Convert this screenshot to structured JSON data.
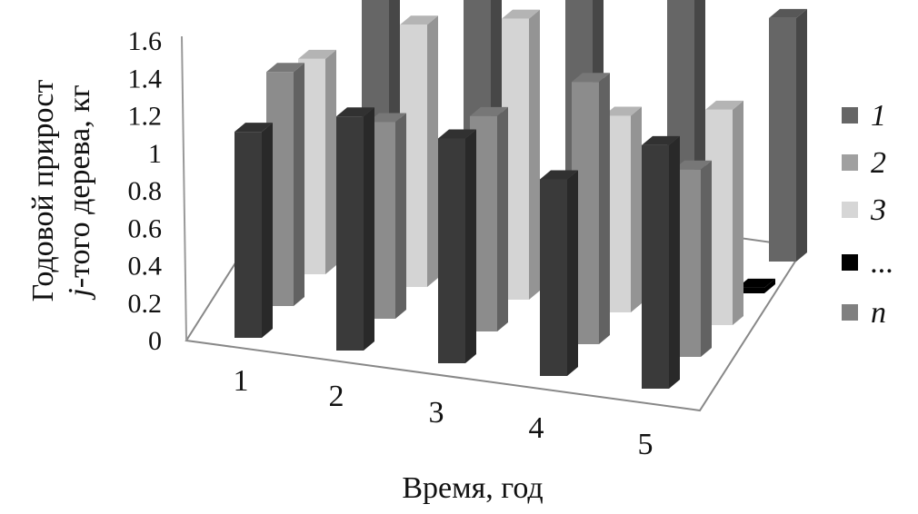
{
  "chart_data": {
    "type": "bar",
    "variant": "3d-clustered-depth",
    "title": "",
    "xlabel": "Время, год",
    "ylabel_line1": "Годовой прирост",
    "ylabel_line2_italic": "j",
    "ylabel_line2_rest": "-того дерева, кг",
    "categories": [
      "1",
      "2",
      "3",
      "4",
      "5"
    ],
    "ylim": [
      0,
      1.6
    ],
    "yticks": [
      "0",
      "0.2",
      "0.4",
      "0.6",
      "0.8",
      "1",
      "1.2",
      "1.4",
      "1.6"
    ],
    "grid": false,
    "legend_position": "right",
    "series": [
      {
        "name": "1",
        "color": "#3a3a3a",
        "values": [
          1.1,
          1.25,
          1.2,
          1.05,
          1.3
        ]
      },
      {
        "name": "2",
        "color": "#8c8c8c",
        "values": [
          1.25,
          1.05,
          1.15,
          1.4,
          1.0
        ]
      },
      {
        "name": "3",
        "color": "#d4d4d4",
        "values": [
          1.15,
          1.4,
          1.5,
          1.05,
          1.15
        ]
      },
      {
        "name": "...",
        "color": "#000000",
        "values": [
          0.03,
          0.03,
          0.03,
          0.03,
          0.03
        ]
      },
      {
        "name": "n",
        "color": "#666666",
        "values": [
          1.2,
          1.5,
          1.3,
          1.6,
          1.3
        ]
      }
    ],
    "legend_colors": [
      "#666666",
      "#a0a0a0",
      "#d6d6d6",
      "#000000",
      "#808080"
    ]
  }
}
